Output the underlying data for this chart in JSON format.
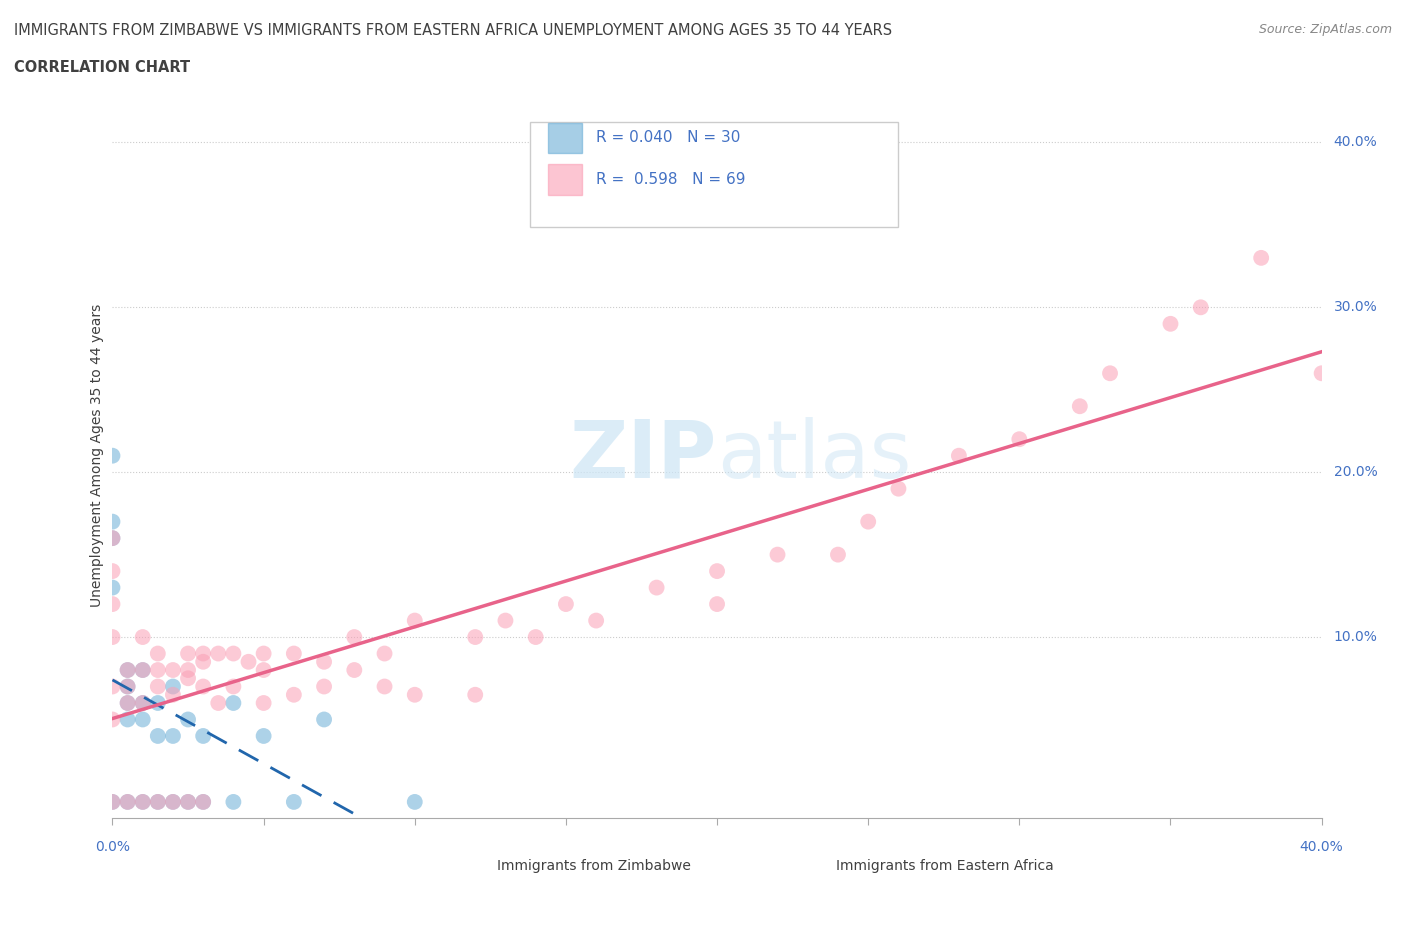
{
  "title_line1": "IMMIGRANTS FROM ZIMBABWE VS IMMIGRANTS FROM EASTERN AFRICA UNEMPLOYMENT AMONG AGES 35 TO 44 YEARS",
  "title_line2": "CORRELATION CHART",
  "source": "Source: ZipAtlas.com",
  "ylabel": "Unemployment Among Ages 35 to 44 years",
  "xlim": [
    0.0,
    0.4
  ],
  "ylim": [
    -0.01,
    0.43
  ],
  "xticks": [
    0.0,
    0.05,
    0.1,
    0.15,
    0.2,
    0.25,
    0.3,
    0.35,
    0.4
  ],
  "legend_r_blue": "0.040",
  "legend_n_blue": "30",
  "legend_r_pink": "0.598",
  "legend_n_pink": "69",
  "legend_label_blue": "Immigrants from Zimbabwe",
  "legend_label_pink": "Immigrants from Eastern Africa",
  "blue_color": "#6baed6",
  "pink_color": "#fa9fb5",
  "blue_line_color": "#2166ac",
  "pink_line_color": "#e8638a",
  "watermark_zip": "ZIP",
  "watermark_atlas": "atlas",
  "grid_color": "#cccccc",
  "background_color": "#ffffff",
  "title_color": "#404040",
  "tick_label_color": "#4472c4",
  "blue_scatter_x": [
    0.0,
    0.0,
    0.0,
    0.0,
    0.0,
    0.005,
    0.005,
    0.005,
    0.005,
    0.005,
    0.01,
    0.01,
    0.01,
    0.01,
    0.015,
    0.015,
    0.015,
    0.02,
    0.02,
    0.02,
    0.025,
    0.025,
    0.03,
    0.03,
    0.04,
    0.04,
    0.05,
    0.06,
    0.07,
    0.1
  ],
  "blue_scatter_y": [
    0.21,
    0.17,
    0.16,
    0.13,
    0.0,
    0.08,
    0.07,
    0.06,
    0.05,
    0.0,
    0.08,
    0.06,
    0.05,
    0.0,
    0.06,
    0.04,
    0.0,
    0.07,
    0.04,
    0.0,
    0.05,
    0.0,
    0.04,
    0.0,
    0.06,
    0.0,
    0.04,
    0.0,
    0.05,
    0.0
  ],
  "pink_scatter_x": [
    0.0,
    0.0,
    0.0,
    0.0,
    0.0,
    0.0,
    0.0,
    0.005,
    0.005,
    0.005,
    0.005,
    0.01,
    0.01,
    0.01,
    0.01,
    0.015,
    0.015,
    0.015,
    0.015,
    0.02,
    0.02,
    0.02,
    0.025,
    0.025,
    0.025,
    0.025,
    0.03,
    0.03,
    0.03,
    0.03,
    0.035,
    0.035,
    0.04,
    0.04,
    0.045,
    0.05,
    0.05,
    0.05,
    0.06,
    0.06,
    0.07,
    0.07,
    0.08,
    0.08,
    0.09,
    0.09,
    0.1,
    0.1,
    0.12,
    0.12,
    0.13,
    0.14,
    0.15,
    0.16,
    0.18,
    0.2,
    0.2,
    0.22,
    0.24,
    0.25,
    0.26,
    0.28,
    0.3,
    0.32,
    0.33,
    0.35,
    0.36,
    0.38,
    0.4
  ],
  "pink_scatter_y": [
    0.16,
    0.14,
    0.12,
    0.1,
    0.07,
    0.05,
    0.0,
    0.08,
    0.07,
    0.06,
    0.0,
    0.1,
    0.08,
    0.06,
    0.0,
    0.09,
    0.08,
    0.07,
    0.0,
    0.08,
    0.065,
    0.0,
    0.09,
    0.08,
    0.075,
    0.0,
    0.09,
    0.085,
    0.07,
    0.0,
    0.09,
    0.06,
    0.09,
    0.07,
    0.085,
    0.09,
    0.08,
    0.06,
    0.09,
    0.065,
    0.085,
    0.07,
    0.1,
    0.08,
    0.09,
    0.07,
    0.11,
    0.065,
    0.1,
    0.065,
    0.11,
    0.1,
    0.12,
    0.11,
    0.13,
    0.14,
    0.12,
    0.15,
    0.15,
    0.17,
    0.19,
    0.21,
    0.22,
    0.24,
    0.26,
    0.29,
    0.3,
    0.33,
    0.26
  ]
}
